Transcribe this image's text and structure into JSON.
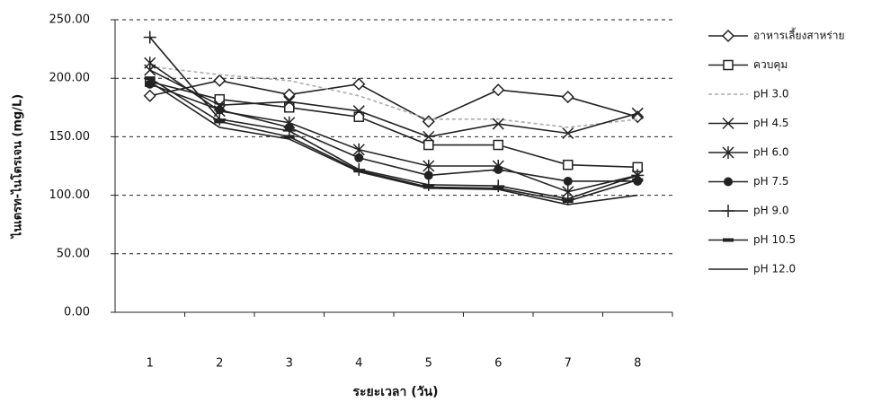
{
  "chart_data": {
    "type": "line",
    "x_label": "ระยะเวลา (วัน)",
    "y_label": "ไนเตรท-ไนโตรเจน (mg/L)",
    "categories": [
      1,
      2,
      3,
      4,
      5,
      6,
      7,
      8
    ],
    "ylim": [
      0,
      250
    ],
    "yticks": [
      {
        "value": 0,
        "label": "0.00"
      },
      {
        "value": 50,
        "label": "50.00"
      },
      {
        "value": 100,
        "label": "100.00"
      },
      {
        "value": 150,
        "label": "150.00"
      },
      {
        "value": 200,
        "label": "200.00"
      },
      {
        "value": 250,
        "label": "250.00"
      }
    ],
    "grid": true,
    "legend": "right",
    "series": [
      {
        "name": "อาหารเลี้ยงสาหร่าย",
        "color": "#222",
        "marker": "diamond",
        "values": [
          185,
          198,
          186,
          195,
          163,
          190,
          184,
          167
        ]
      },
      {
        "name": "ควบคุม",
        "color": "#222",
        "marker": "square",
        "values": [
          197,
          182,
          175,
          167,
          143,
          143,
          126,
          124
        ]
      },
      {
        "name": "pH 3.0",
        "color": "#aaa",
        "marker": "none",
        "dashed": true,
        "values": [
          210,
          203,
          198,
          185,
          165,
          165,
          158,
          165
        ]
      },
      {
        "name": "pH 4.5",
        "color": "#222",
        "marker": "x",
        "values": [
          207,
          177,
          180,
          172,
          150,
          161,
          153,
          170
        ]
      },
      {
        "name": "pH 6.0",
        "color": "#222",
        "marker": "asterisk",
        "values": [
          213,
          172,
          162,
          139,
          125,
          125,
          103,
          117
        ]
      },
      {
        "name": "pH 7.5",
        "color": "#222",
        "marker": "circle",
        "values": [
          195,
          173,
          158,
          132,
          117,
          122,
          112,
          112
        ]
      },
      {
        "name": "pH 9.0",
        "color": "#222",
        "marker": "plus",
        "values": [
          235,
          165,
          155,
          122,
          109,
          108,
          97,
          117
        ]
      },
      {
        "name": "pH 10.5",
        "color": "#222",
        "marker": "dash",
        "values": [
          200,
          163,
          150,
          121,
          107,
          106,
          95,
          113
        ]
      },
      {
        "name": "pH 12.0",
        "color": "#222",
        "marker": "none",
        "values": [
          197,
          158,
          148,
          120,
          106,
          105,
          92,
          100
        ]
      }
    ]
  }
}
